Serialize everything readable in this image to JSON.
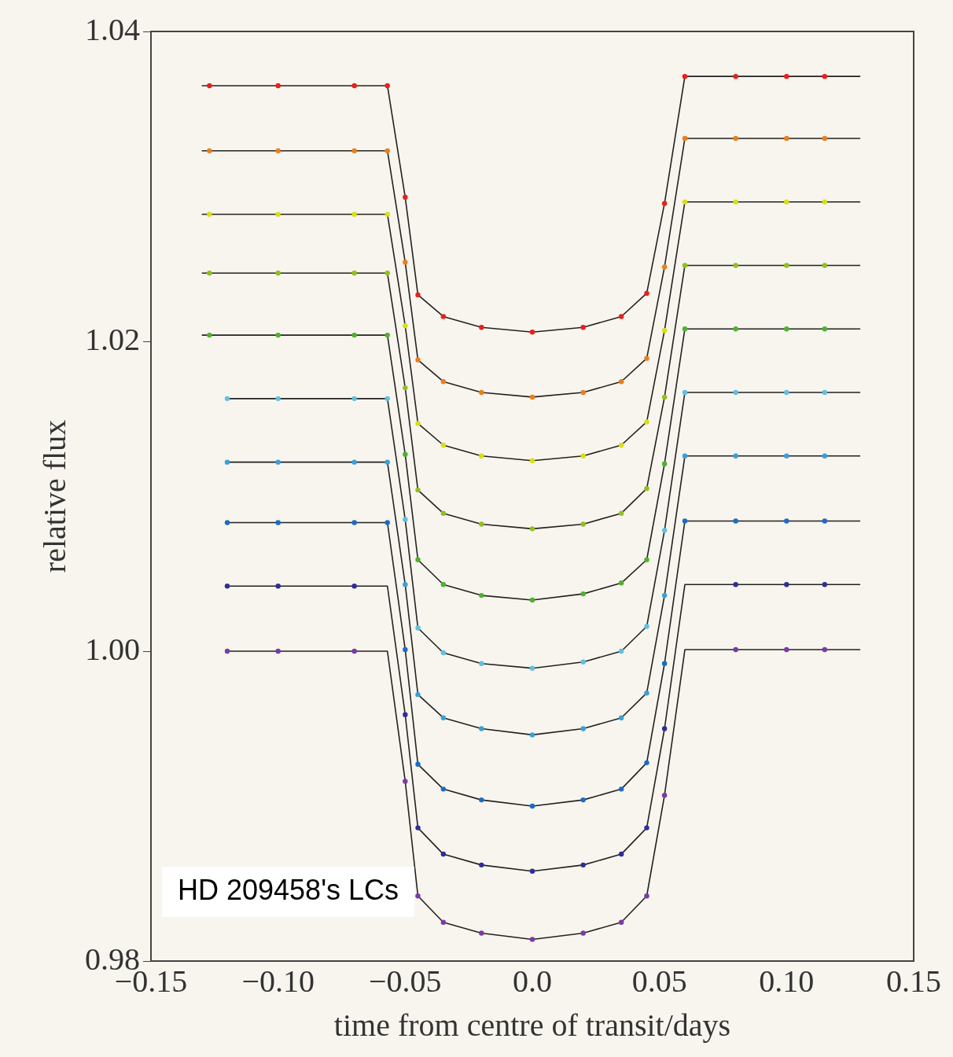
{
  "chart_data": {
    "type": "scatter",
    "xlabel": "time from centre of transit/days",
    "ylabel": "relative flux",
    "annotations": [
      "HD 209458's LCs"
    ],
    "xlim": [
      -0.15,
      0.15
    ],
    "ylim": [
      0.98,
      1.04
    ],
    "xticks": [
      {
        "value": -0.15,
        "label": "−0.15"
      },
      {
        "value": -0.1,
        "label": "−0.10"
      },
      {
        "value": -0.05,
        "label": "−0.05"
      },
      {
        "value": 0,
        "label": "0.0"
      },
      0.05,
      {
        "value": 0.1,
        "label": "0.10"
      },
      {
        "value": 0.15,
        "label": "0.15"
      }
    ],
    "yticks": [
      0.98,
      {
        "value": 1,
        "label": "1.00"
      },
      1.02,
      1.04
    ],
    "grid": false,
    "legend": false,
    "marker": "circle",
    "series": [
      {
        "color": "#e8201c",
        "x": [
          -0.127,
          -0.1,
          -0.07,
          -0.057,
          -0.05,
          -0.045,
          -0.035,
          -0.02,
          0,
          0.02,
          0.035,
          0.045,
          0.052,
          0.06,
          0.08,
          0.1,
          0.115
        ],
        "values": [
          1.0365,
          1.0365,
          1.0365,
          1.0365,
          1.0293,
          1.023,
          1.0216,
          1.0209,
          1.0206,
          1.0209,
          1.0216,
          1.0231,
          1.0289,
          1.0371,
          1.0371,
          1.0371,
          1.0371
        ]
      },
      {
        "color": "#e8801c",
        "x": [
          -0.127,
          -0.1,
          -0.07,
          -0.057,
          -0.05,
          -0.045,
          -0.035,
          -0.02,
          0,
          0.02,
          0.035,
          0.045,
          0.052,
          0.06,
          0.08,
          0.1,
          0.115
        ],
        "values": [
          1.0323,
          1.0323,
          1.0323,
          1.0323,
          1.0251,
          1.0188,
          1.0174,
          1.0167,
          1.0164,
          1.0167,
          1.0174,
          1.0189,
          1.0248,
          1.0331,
          1.0331,
          1.0331,
          1.0331
        ]
      },
      {
        "color": "#d8e010",
        "x": [
          -0.127,
          -0.1,
          -0.07,
          -0.057,
          -0.05,
          -0.045,
          -0.035,
          -0.02,
          0,
          0.02,
          0.035,
          0.045,
          0.052,
          0.06,
          0.08,
          0.1,
          0.115
        ],
        "values": [
          1.0282,
          1.0282,
          1.0282,
          1.0282,
          1.021,
          1.0147,
          1.0133,
          1.0126,
          1.0123,
          1.0126,
          1.0133,
          1.0148,
          1.0207,
          1.029,
          1.029,
          1.029,
          1.029
        ]
      },
      {
        "color": "#90c020",
        "x": [
          -0.127,
          -0.1,
          -0.07,
          -0.057,
          -0.05,
          -0.045,
          -0.035,
          -0.02,
          0,
          0.02,
          0.035,
          0.045,
          0.052,
          0.06,
          0.08,
          0.1,
          0.115
        ],
        "values": [
          1.0244,
          1.0244,
          1.0244,
          1.0244,
          1.017,
          1.0104,
          1.0089,
          1.0082,
          1.0079,
          1.0082,
          1.0089,
          1.0105,
          1.0164,
          1.0249,
          1.0249,
          1.0249,
          1.0249
        ]
      },
      {
        "color": "#50b030",
        "x": [
          -0.127,
          -0.1,
          -0.07,
          -0.057,
          -0.05,
          -0.045,
          -0.035,
          -0.02,
          0,
          0.02,
          0.035,
          0.045,
          0.052,
          0.06,
          0.08,
          0.1,
          0.115
        ],
        "values": [
          1.0204,
          1.0204,
          1.0204,
          1.0204,
          1.0127,
          1.0059,
          1.0043,
          1.0036,
          1.0033,
          1.0037,
          1.0044,
          1.0059,
          1.0121,
          1.0208,
          1.0208,
          1.0208,
          1.0208
        ]
      },
      {
        "color": "#60c0e0",
        "x": [
          -0.12,
          -0.1,
          -0.07,
          -0.057,
          -0.05,
          -0.045,
          -0.035,
          -0.02,
          0,
          0.02,
          0.035,
          0.045,
          0.052,
          0.06,
          0.08,
          0.1,
          0.115
        ],
        "values": [
          1.0163,
          1.0163,
          1.0163,
          1.0163,
          1.0085,
          1.0015,
          0.9999,
          0.9992,
          0.9989,
          0.9993,
          1,
          1.0016,
          1.0078,
          1.0167,
          1.0167,
          1.0167,
          1.0167
        ]
      },
      {
        "color": "#3aa0d8",
        "x": [
          -0.12,
          -0.1,
          -0.07,
          -0.057,
          -0.05,
          -0.045,
          -0.035,
          -0.02,
          0,
          0.02,
          0.035,
          0.045,
          0.052,
          0.06,
          0.08,
          0.1,
          0.115
        ],
        "values": [
          1.0122,
          1.0122,
          1.0122,
          1.0122,
          1.0043,
          0.9972,
          0.9957,
          0.995,
          0.9946,
          0.995,
          0.9957,
          0.9973,
          1.0036,
          1.0126,
          1.0126,
          1.0126,
          1.0126
        ]
      },
      {
        "color": "#1a6cc8",
        "x": [
          -0.12,
          -0.1,
          -0.07,
          -0.057,
          -0.05,
          -0.045,
          -0.035,
          -0.02,
          0,
          0.02,
          0.035,
          0.045,
          0.052,
          0.06,
          0.08,
          0.1,
          0.115
        ],
        "values": [
          1.0083,
          1.0083,
          1.0083,
          1.0083,
          1.0001,
          0.9927,
          0.9911,
          0.9904,
          0.99,
          0.9904,
          0.9911,
          0.9928,
          0.9992,
          1.0084,
          1.0084,
          1.0084,
          1.0084
        ]
      },
      {
        "color": "#302c98",
        "x": [
          -0.12,
          -0.1,
          -0.07,
          -0.057,
          -0.05,
          -0.045,
          -0.035,
          -0.02,
          0,
          0.02,
          0.035,
          0.045,
          0.052,
          0.06,
          0.08,
          0.1,
          0.115
        ],
        "values": [
          1.0042,
          1.0042,
          1.0042,
          null,
          0.9959,
          0.9886,
          0.9869,
          0.9862,
          0.9858,
          0.9862,
          0.9869,
          0.9886,
          0.995,
          null,
          1.0043,
          1.0043,
          1.0043
        ]
      },
      {
        "color": "#7a3aa8",
        "x": [
          -0.12,
          -0.1,
          -0.07,
          -0.057,
          -0.05,
          -0.045,
          -0.035,
          -0.02,
          0,
          0.02,
          0.035,
          0.045,
          0.052,
          0.06,
          0.08,
          0.1,
          0.115
        ],
        "values": [
          1,
          1,
          1,
          null,
          0.9916,
          0.9842,
          0.9825,
          0.9818,
          0.9814,
          0.9818,
          0.9825,
          0.9842,
          0.9907,
          null,
          1.0001,
          1.0001,
          1.0001
        ]
      },
      {
        "type": "line",
        "marker": "none",
        "color": "#222222",
        "x": [
          -0.13,
          -0.057,
          -0.05,
          -0.045,
          -0.035,
          -0.02,
          0,
          0.02,
          0.035,
          0.045,
          0.052,
          0.06,
          0.129
        ],
        "values": [
          1.0365,
          1.0365,
          1.0293,
          1.023,
          1.0216,
          1.0209,
          1.0206,
          1.0209,
          1.0216,
          1.0231,
          1.0289,
          1.0371,
          1.0371
        ]
      },
      {
        "type": "line",
        "marker": "none",
        "color": "#222222",
        "x": [
          -0.13,
          -0.057,
          -0.05,
          -0.045,
          -0.035,
          -0.02,
          0,
          0.02,
          0.035,
          0.045,
          0.052,
          0.06,
          0.129
        ],
        "values": [
          1.0323,
          1.0323,
          1.0251,
          1.0188,
          1.0174,
          1.0167,
          1.0164,
          1.0167,
          1.0174,
          1.0189,
          1.0248,
          1.0331,
          1.0331
        ]
      },
      {
        "type": "line",
        "marker": "none",
        "color": "#222222",
        "x": [
          -0.13,
          -0.057,
          -0.05,
          -0.045,
          -0.035,
          -0.02,
          0,
          0.02,
          0.035,
          0.045,
          0.052,
          0.06,
          0.129
        ],
        "values": [
          1.0282,
          1.0282,
          1.021,
          1.0147,
          1.0133,
          1.0126,
          1.0123,
          1.0126,
          1.0133,
          1.0148,
          1.0207,
          1.029,
          1.029
        ]
      },
      {
        "type": "line",
        "marker": "none",
        "color": "#222222",
        "x": [
          -0.13,
          -0.057,
          -0.05,
          -0.045,
          -0.035,
          -0.02,
          0,
          0.02,
          0.035,
          0.045,
          0.052,
          0.06,
          0.129
        ],
        "values": [
          1.0244,
          1.0244,
          1.017,
          1.0104,
          1.0089,
          1.0082,
          1.0079,
          1.0082,
          1.0089,
          1.0105,
          1.0164,
          1.0249,
          1.0249
        ]
      },
      {
        "type": "line",
        "marker": "none",
        "color": "#222222",
        "x": [
          -0.13,
          -0.057,
          -0.05,
          -0.045,
          -0.035,
          -0.02,
          0,
          0.02,
          0.035,
          0.045,
          0.052,
          0.06,
          0.129
        ],
        "values": [
          1.0204,
          1.0204,
          1.0127,
          1.0059,
          1.0043,
          1.0036,
          1.0033,
          1.0037,
          1.0044,
          1.0059,
          1.0121,
          1.0208,
          1.0208
        ]
      },
      {
        "type": "line",
        "marker": "none",
        "color": "#222222",
        "x": [
          -0.12,
          -0.057,
          -0.05,
          -0.045,
          -0.035,
          -0.02,
          0,
          0.02,
          0.035,
          0.045,
          0.052,
          0.06,
          0.129
        ],
        "values": [
          1.0163,
          1.0163,
          1.0085,
          1.0015,
          0.9999,
          0.9992,
          0.9989,
          0.9993,
          1,
          1.0016,
          1.0078,
          1.0167,
          1.0167
        ]
      },
      {
        "type": "line",
        "marker": "none",
        "color": "#222222",
        "x": [
          -0.12,
          -0.057,
          -0.05,
          -0.045,
          -0.035,
          -0.02,
          0,
          0.02,
          0.035,
          0.045,
          0.052,
          0.06,
          0.129
        ],
        "values": [
          1.0122,
          1.0122,
          1.0043,
          0.9972,
          0.9957,
          0.995,
          0.9946,
          0.995,
          0.9957,
          0.9973,
          1.0036,
          1.0126,
          1.0126
        ]
      },
      {
        "type": "line",
        "marker": "none",
        "color": "#222222",
        "x": [
          -0.12,
          -0.057,
          -0.05,
          -0.045,
          -0.035,
          -0.02,
          0,
          0.02,
          0.035,
          0.045,
          0.052,
          0.06,
          0.129
        ],
        "values": [
          1.0083,
          1.0083,
          1.0001,
          0.9927,
          0.9911,
          0.9904,
          0.99,
          0.9904,
          0.9911,
          0.9928,
          0.9992,
          1.0084,
          1.0084
        ]
      },
      {
        "type": "line",
        "marker": "none",
        "color": "#222222",
        "x": [
          -0.12,
          -0.057,
          -0.05,
          -0.045,
          -0.035,
          -0.02,
          0,
          0.02,
          0.035,
          0.045,
          0.052,
          0.06,
          0.129
        ],
        "values": [
          1.0042,
          1.0042,
          0.9959,
          0.9886,
          0.9869,
          0.9862,
          0.9858,
          0.9862,
          0.9869,
          0.9886,
          0.995,
          1.0043,
          1.0043
        ]
      },
      {
        "type": "line",
        "marker": "none",
        "color": "#222222",
        "x": [
          -0.12,
          -0.057,
          -0.05,
          -0.045,
          -0.035,
          -0.02,
          0,
          0.02,
          0.035,
          0.045,
          0.052,
          0.06,
          0.129
        ],
        "values": [
          1,
          1,
          0.9916,
          0.9842,
          0.9825,
          0.9818,
          0.9814,
          0.9818,
          0.9825,
          0.9842,
          0.9907,
          1.0001,
          1.0001
        ]
      }
    ]
  }
}
